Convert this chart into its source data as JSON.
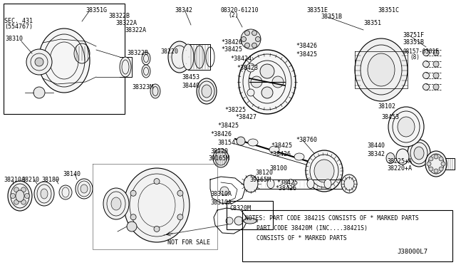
{
  "bg": "#ffffff",
  "diagram_code": "J38000L7",
  "notes_line1": "NOTES: PART CODE 38421S CONSISTS OF * MARKED PARTS",
  "notes_line2": "PART CODE 38420M (INC....38421S)",
  "notes_line3": "CONSISTS OF * MARKED PARTS",
  "not_for_sale": "NOT FOR SALE",
  "c8320m_label": "C8320M",
  "inset_sec": "SEC. 431",
  "inset_sec2": "(554767)",
  "fw": 640,
  "fh": 372
}
